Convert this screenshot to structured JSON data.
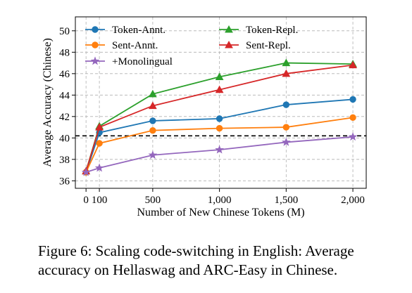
{
  "caption": {
    "line1": "Figure 6: Scaling code-switching in English: Average",
    "line2": "accuracy on Hellaswag and ARC-Easy in Chinese."
  },
  "chart_data": {
    "type": "line",
    "title": "",
    "xlabel": "Number of New Chinese Tokens (M)",
    "ylabel": "Average Accuracy (Chinese)",
    "x": [
      0,
      100,
      500,
      1000,
      1500,
      2000
    ],
    "xticks": [
      0,
      100,
      500,
      1000,
      1500,
      2000
    ],
    "xtick_labels": [
      "0",
      "100",
      "500",
      "1,000",
      "1,500",
      "2,000"
    ],
    "yticks": [
      36,
      38,
      40,
      42,
      44,
      46,
      48,
      50
    ],
    "xlim": [
      -80,
      2100
    ],
    "ylim": [
      35.3,
      51.3
    ],
    "grid": true,
    "legend_position": "top-left",
    "baseline": {
      "y": 40.2,
      "style": "dashed",
      "color": "#000000"
    },
    "series": [
      {
        "name": "Token-Annt.",
        "color": "#1f77b4",
        "marker": "circle",
        "values": [
          36.8,
          40.5,
          41.6,
          41.8,
          43.1,
          43.6
        ]
      },
      {
        "name": "Token-Repl.",
        "color": "#2ca02c",
        "marker": "triangle",
        "values": [
          36.9,
          41.1,
          44.1,
          45.7,
          47.0,
          46.9
        ]
      },
      {
        "name": "Sent-Annt.",
        "color": "#ff7f0e",
        "marker": "circle",
        "values": [
          36.8,
          39.5,
          40.7,
          40.9,
          41.0,
          41.9
        ]
      },
      {
        "name": "Sent-Repl.",
        "color": "#d62728",
        "marker": "triangle",
        "values": [
          36.9,
          41.0,
          43.0,
          44.5,
          46.0,
          46.8
        ]
      },
      {
        "name": "+Monolingual",
        "color": "#9467bd",
        "marker": "star",
        "values": [
          36.8,
          37.2,
          38.4,
          38.9,
          39.6,
          40.1
        ]
      }
    ]
  }
}
